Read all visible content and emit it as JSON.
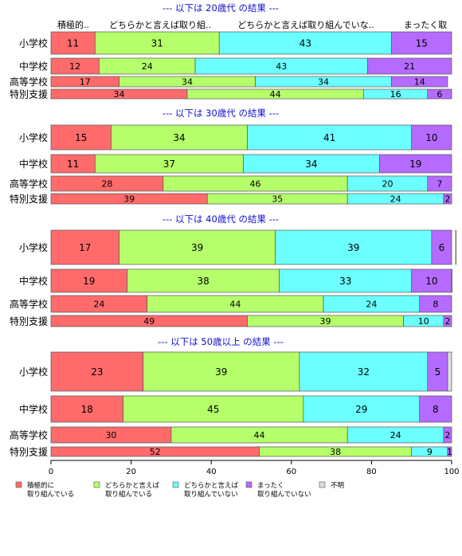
{
  "chart_data": {
    "type": "bar",
    "orientation": "horizontal",
    "stacked": true,
    "xlim": [
      0,
      100
    ],
    "x_ticks": [
      "0",
      "20",
      "40",
      "60",
      "80",
      "100"
    ],
    "column_headers": [
      "積極的..",
      "どちらかと言えば取り組..",
      "どちらかと言えば取り組んでいな..",
      "まったく取",
      "不明"
    ],
    "categories": [
      "小学校",
      "中学校",
      "高等学校",
      "特別支援"
    ],
    "colors": [
      "#FF6B6B",
      "#B5FF6B",
      "#6BFFFF",
      "#B56BFF",
      "#DDDDDD"
    ],
    "legend": [
      {
        "line1": "積極的に",
        "line2": "取り組んでいる"
      },
      {
        "line1": "どちらかと言えば",
        "line2": "取り組んでいる"
      },
      {
        "line1": "どちらかと言えば",
        "line2": "取り組んでいない"
      },
      {
        "line1": "まったく",
        "line2": "取り組んでいない"
      },
      {
        "line1": "不明",
        "line2": ""
      }
    ],
    "panels": [
      {
        "title": "--- 以下は 20歳代 の結果 ---",
        "values": [
          [
            11,
            31,
            43,
            15,
            0
          ],
          [
            12,
            24,
            43,
            21,
            0
          ],
          [
            17,
            34,
            34,
            14,
            0
          ],
          [
            34,
            44,
            16,
            6,
            0
          ]
        ]
      },
      {
        "title": "--- 以下は 30歳代 の結果 ---",
        "values": [
          [
            15,
            34,
            41,
            10,
            0
          ],
          [
            11,
            37,
            34,
            19,
            0
          ],
          [
            28,
            46,
            20,
            7,
            0
          ],
          [
            39,
            35,
            24,
            2,
            0
          ]
        ]
      },
      {
        "title": "--- 以下は 40歳代 の結果 ---",
        "values": [
          [
            17,
            39,
            39,
            6,
            0.5
          ],
          [
            19,
            38,
            33,
            10,
            1
          ],
          [
            24,
            44,
            24,
            8,
            0
          ],
          [
            49,
            39,
            10,
            2,
            0
          ]
        ]
      },
      {
        "title": "--- 以下は 50歳以上 の結果 ---",
        "values": [
          [
            23,
            39,
            32,
            5,
            1
          ],
          [
            18,
            45,
            29,
            8,
            0
          ],
          [
            30,
            44,
            24,
            2,
            0
          ],
          [
            52,
            38,
            9,
            1,
            0
          ]
        ]
      }
    ]
  }
}
